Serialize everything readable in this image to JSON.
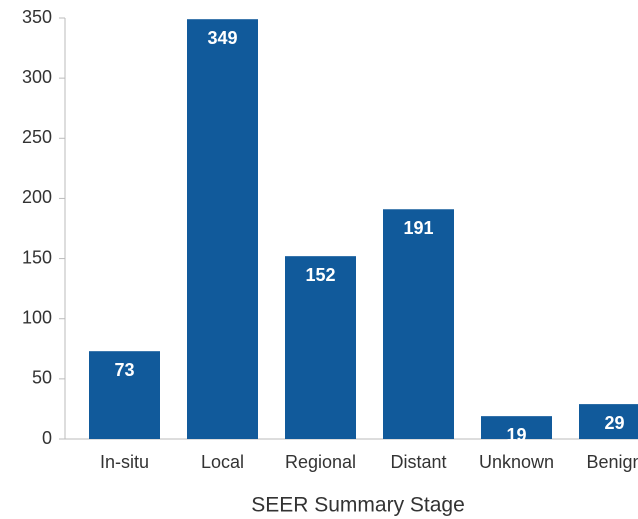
{
  "chart_data": {
    "type": "bar",
    "x_label": "SEER Summary Stage",
    "categories": [
      "In-situ",
      "Local",
      "Regional",
      "Distant",
      "Unknown",
      "Benign"
    ],
    "values": [
      73,
      349,
      152,
      191,
      19,
      29
    ],
    "color": "#115a9b",
    "ylim": [
      0,
      350
    ],
    "yticks": [
      0,
      50,
      100,
      150,
      200,
      250,
      300,
      350
    ]
  }
}
